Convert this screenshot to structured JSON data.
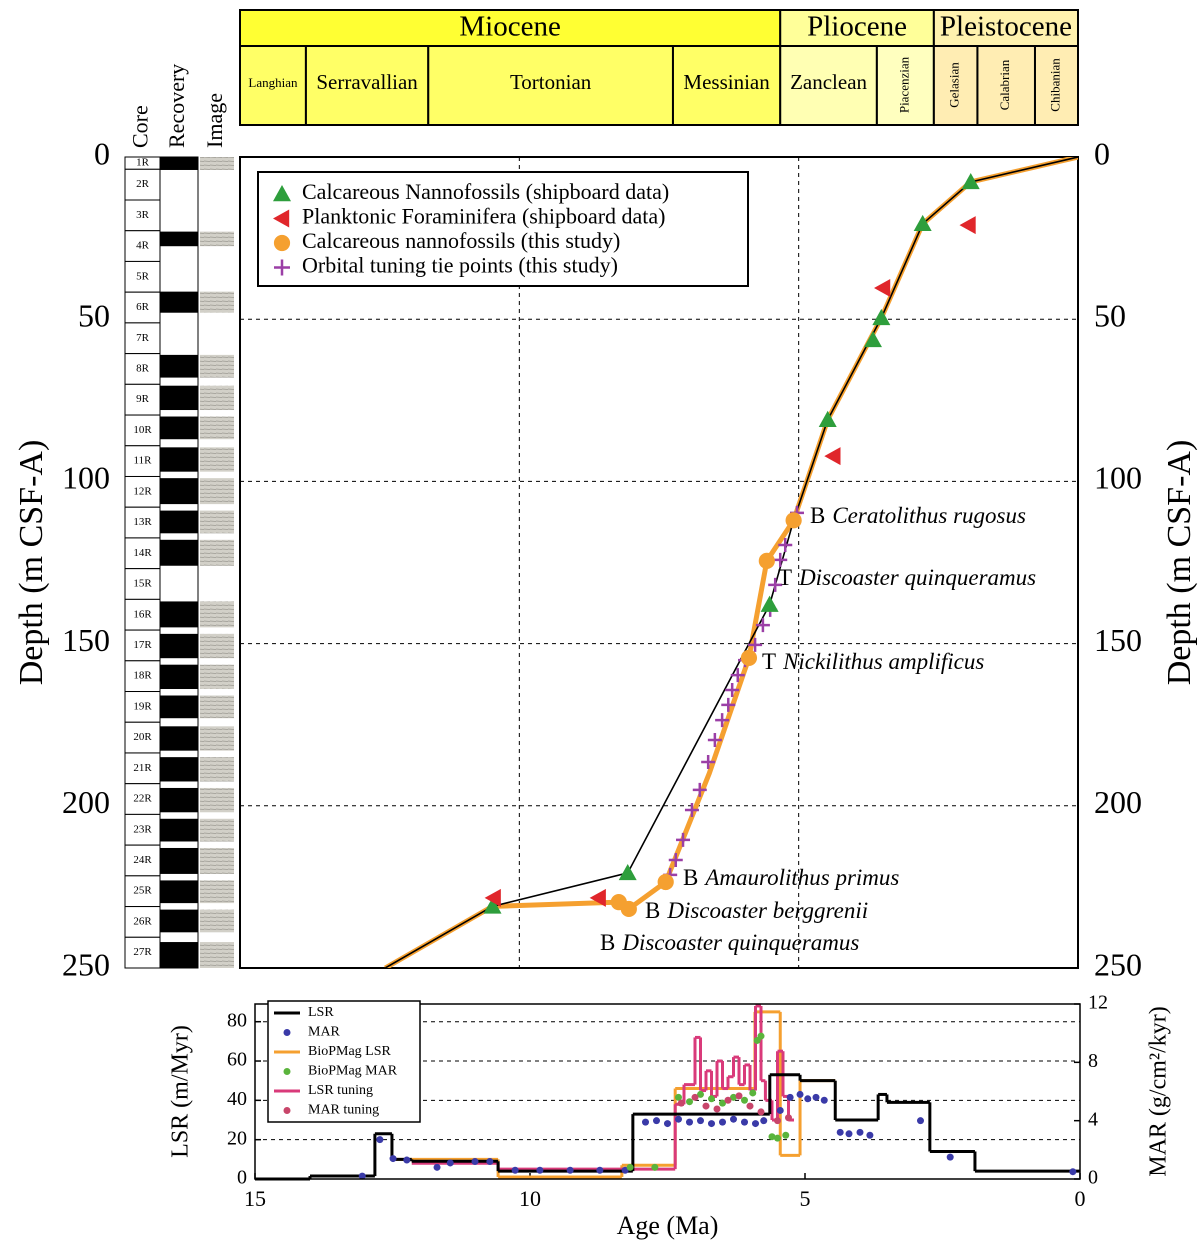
{
  "chart_data": [
    {
      "type": "scatter",
      "ylabel": "Depth (m CSF-A)",
      "xlim": [
        15,
        0
      ],
      "ylim": [
        0,
        250
      ],
      "y_inverted": true,
      "yticks": [
        0,
        50,
        100,
        150,
        200,
        250
      ],
      "xgrid": [
        10,
        5
      ],
      "grid": true,
      "legend": "upper left",
      "timescale": {
        "epochs": [
          {
            "name": "Miocene",
            "start": 15,
            "end": 5.33,
            "color": "#ffff33"
          },
          {
            "name": "Pliocene",
            "start": 5.33,
            "end": 2.58,
            "color": "#ffff99"
          },
          {
            "name": "Pleistocene",
            "start": 2.58,
            "end": 0,
            "color": "#fff2ae"
          }
        ],
        "stages": [
          {
            "name": "Langhian",
            "start": 15,
            "end": 13.82,
            "color": "#ffff66"
          },
          {
            "name": "Serravallian",
            "start": 13.82,
            "end": 11.63,
            "color": "#ffff66"
          },
          {
            "name": "Tortonian",
            "start": 11.63,
            "end": 7.25,
            "color": "#ffff66"
          },
          {
            "name": "Messinian",
            "start": 7.25,
            "end": 5.33,
            "color": "#ffff66"
          },
          {
            "name": "Zanclean",
            "start": 5.33,
            "end": 3.6,
            "color": "#ffffb3"
          },
          {
            "name": "Piacenzian",
            "start": 3.6,
            "end": 2.58,
            "color": "#ffffbf"
          },
          {
            "name": "Gelasian",
            "start": 2.58,
            "end": 1.8,
            "color": "#ffedb3"
          },
          {
            "name": "Calabrian",
            "start": 1.8,
            "end": 0.77,
            "color": "#ffedb3"
          },
          {
            "name": "Chibanian",
            "start": 0.77,
            "end": 0,
            "color": "#ffedb3"
          }
        ]
      },
      "core_log": {
        "headers": [
          "Core",
          "Recovery",
          "Image"
        ],
        "cores": [
          "1R",
          "2R",
          "3R",
          "4R",
          "5R",
          "6R",
          "7R",
          "8R",
          "9R",
          "10R",
          "11R",
          "12R",
          "13R",
          "14R",
          "15R",
          "16R",
          "17R",
          "18R",
          "19R",
          "20R",
          "21R",
          "22R",
          "23R",
          "24R",
          "25R",
          "26R",
          "27R"
        ],
        "recovery": [
          [
            0,
            4
          ],
          [
            23,
            27.5
          ],
          [
            41.5,
            48
          ],
          [
            61,
            68
          ],
          [
            70.5,
            78
          ],
          [
            80,
            87
          ],
          [
            89.5,
            97
          ],
          [
            99,
            107
          ],
          [
            109,
            116
          ],
          [
            118,
            126
          ],
          [
            137,
            145
          ],
          [
            147,
            154.5
          ],
          [
            156.5,
            164
          ],
          [
            166,
            173
          ],
          [
            175.5,
            183
          ],
          [
            185,
            192.5
          ],
          [
            194.5,
            202
          ],
          [
            204,
            211
          ],
          [
            213,
            221
          ],
          [
            223,
            230
          ],
          [
            232,
            239
          ],
          [
            242,
            250
          ]
        ]
      },
      "lines": [
        {
          "color": "#f5a030",
          "width": 5,
          "x": [
            0,
            1.92,
            2.78,
            3.52,
            4.48,
            5.09,
            5.57,
            5.89,
            6.6,
            7.38,
            8.04,
            8.22,
            10.48,
            12.4
          ],
          "values": [
            0,
            7.7,
            20.6,
            49.6,
            81,
            112,
            124.5,
            154.4,
            190,
            223.5,
            231.8,
            229.7,
            231,
            250
          ]
        },
        {
          "color": "#000000",
          "width": 1.6,
          "x": [
            0,
            1.92,
            2.78,
            3.52,
            4.48,
            5.09,
            5.52,
            8.06,
            10.48,
            12.4
          ],
          "values": [
            0,
            7.7,
            20.6,
            49.6,
            81,
            112,
            138,
            220.7,
            231,
            250
          ]
        }
      ],
      "series": [
        {
          "name": "Calcareous Nannofossils (shipboard data)",
          "color": "#2e9e3c",
          "marker": "triangle-up",
          "x": [
            1.92,
            2.78,
            3.52,
            3.67,
            4.48,
            5.52,
            8.06,
            10.48
          ],
          "values": [
            7.7,
            20.6,
            49.6,
            56.4,
            81,
            138,
            220.7,
            231
          ]
        },
        {
          "name": "Planktonic Foraminifera (shipboard data)",
          "color": "#e0262b",
          "marker": "triangle-left",
          "x": [
            1.96,
            3.49,
            4.38,
            10.46,
            8.58
          ],
          "values": [
            21,
            40.4,
            92.2,
            228.4,
            228.4
          ]
        },
        {
          "name": "Calcareous nannofossils (this study)",
          "color": "#f5a030",
          "marker": "circle",
          "x": [
            5.09,
            5.57,
            5.89,
            7.38,
            8.22,
            8.04
          ],
          "values": [
            112,
            124.5,
            154.4,
            223.5,
            229.7,
            231.8
          ]
        },
        {
          "name": "Orbital tuning tie points (this study)",
          "color": "#9b3fa6",
          "marker": "plus",
          "x": [
            5.03,
            5.24,
            5.33,
            5.42,
            5.51,
            5.64,
            5.78,
            5.96,
            6.09,
            6.19,
            6.26,
            6.37,
            6.5,
            6.62,
            6.77,
            6.91,
            7.07,
            7.2,
            7.3
          ],
          "values": [
            109.7,
            119.6,
            124.2,
            131.9,
            139.6,
            144.3,
            150.4,
            155.1,
            159.7,
            164.3,
            168.9,
            173.6,
            179.7,
            186.5,
            195.1,
            201.3,
            210.5,
            216.7,
            221.3
          ]
        }
      ],
      "annotations": [
        {
          "marker": "B",
          "taxon": "Ceratolithus rugosus"
        },
        {
          "marker": "T",
          "taxon": "Discoaster quinqueramus"
        },
        {
          "marker": "T",
          "taxon": "Nickilithus amplificus"
        },
        {
          "marker": "B",
          "taxon": "Amaurolithus primus"
        },
        {
          "marker": "B",
          "taxon": "Discoaster berggrenii"
        },
        {
          "marker": "B",
          "taxon": "Discoaster quinqueramus"
        }
      ]
    },
    {
      "type": "step",
      "xlabel": "Age (Ma)",
      "ylabel": "LSR (m/Myr)",
      "y2label": "MAR (g/cm²/kyr)",
      "xlim": [
        15,
        0
      ],
      "ylim": [
        0,
        89
      ],
      "y2lim": [
        0,
        12
      ],
      "xticks": [
        15,
        10,
        5,
        0
      ],
      "yticks": [
        0,
        20,
        40,
        60,
        80
      ],
      "y2ticks": [
        0,
        4,
        8,
        12
      ],
      "grid": true,
      "legend": "upper left",
      "series": [
        {
          "name": "LSR",
          "color": "#000000",
          "style": "step",
          "bins": [
            15,
            14,
            12.82,
            12.51,
            12.15,
            10.58,
            8.13,
            5.64,
            5.09,
            4.45,
            3.67,
            3.51,
            2.73,
            1.91,
            0
          ],
          "values": [
            0,
            1.5,
            23,
            10,
            9,
            4,
            33,
            53,
            50,
            30,
            43,
            39,
            14,
            4
          ]
        },
        {
          "name": "MAR",
          "color": "#3a3aa8",
          "style": "dots",
          "axis": "y2",
          "x": [
            13.05,
            12.73,
            12.49,
            12.24,
            11.69,
            11.45,
            11.0,
            10.73,
            10.27,
            9.82,
            9.27,
            8.73,
            8.27,
            7.9,
            7.7,
            7.5,
            7.3,
            7.1,
            6.9,
            6.7,
            6.5,
            6.3,
            6.1,
            5.9,
            5.75,
            5.45,
            5.27,
            5.09,
            4.95,
            4.8,
            4.65,
            4.36,
            4.2,
            4.0,
            3.82,
            2.9,
            2.36,
            0.13
          ],
          "values": [
            0.2,
            2.7,
            1.4,
            1.3,
            0.8,
            1.1,
            1.2,
            1.2,
            0.6,
            0.6,
            0.6,
            0.6,
            0.6,
            3.9,
            4.0,
            3.8,
            4.1,
            3.9,
            4.0,
            3.8,
            3.9,
            4.1,
            3.9,
            3.8,
            4.0,
            4.7,
            5.6,
            5.8,
            5.5,
            5.6,
            5.4,
            3.2,
            3.1,
            3.2,
            3.0,
            4.0,
            1.5,
            0.5
          ]
        },
        {
          "name": "BioPMag LSR",
          "color": "#f5a030",
          "style": "step",
          "bins": [
            12.51,
            10.58,
            8.33,
            7.36,
            5.91,
            5.45,
            5.09,
            4.45
          ],
          "values": [
            10,
            1,
            7,
            46,
            85,
            12,
            50
          ]
        },
        {
          "name": "BioPMag MAR",
          "color": "#5ab43c",
          "style": "dots",
          "axis": "y2",
          "x": [
            8.18,
            7.73,
            7.3,
            7.1,
            6.9,
            6.7,
            6.5,
            6.3,
            6.1,
            5.95,
            5.87,
            5.8,
            5.6,
            5.5,
            5.35
          ],
          "values": [
            0.8,
            0.8,
            5.6,
            5.3,
            5.8,
            5.5,
            5.2,
            5.6,
            5.4,
            5.9,
            9.5,
            9.8,
            2.9,
            2.8,
            3.0
          ]
        },
        {
          "name": "LSR tuning",
          "color": "#d93a7a",
          "style": "step",
          "bins": [
            12.15,
            10.58,
            7.36,
            7.2,
            7.0,
            6.9,
            6.8,
            6.7,
            6.6,
            6.5,
            6.4,
            6.3,
            6.2,
            6.1,
            6.0,
            5.9,
            5.8,
            5.72,
            5.6,
            5.5,
            5.4,
            5.3,
            5.2
          ],
          "values": [
            8,
            5,
            38,
            48,
            72,
            45,
            55,
            42,
            60,
            46,
            52,
            62,
            48,
            58,
            45,
            88,
            50,
            40,
            30,
            65,
            42,
            30
          ]
        },
        {
          "name": "MAR tuning",
          "color": "#c8456a",
          "style": "dots",
          "axis": "y2",
          "x": [
            7.25,
            7.0,
            6.8,
            6.6,
            6.4,
            6.2,
            6.0,
            5.8,
            5.5,
            5.3
          ],
          "values": [
            5.2,
            5.6,
            5.0,
            4.8,
            5.4,
            5.7,
            5.0,
            4.6,
            4.0,
            4.2
          ]
        }
      ]
    }
  ]
}
